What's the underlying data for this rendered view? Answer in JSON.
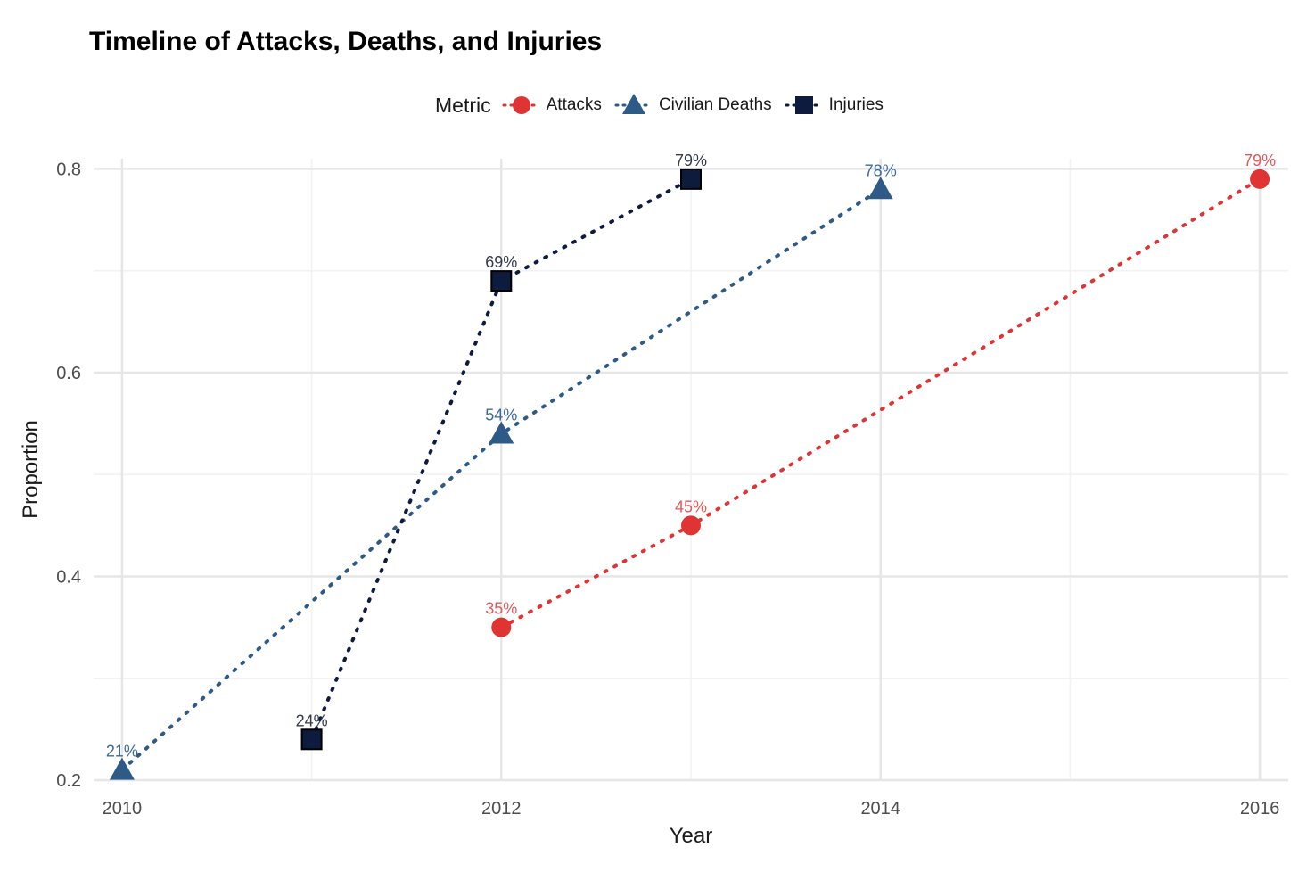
{
  "title": "Timeline of Attacks, Deaths, and Injuries",
  "legend": {
    "title": "Metric",
    "items": [
      {
        "label": "Attacks",
        "color": "#e03333",
        "shape": "circle"
      },
      {
        "label": "Civilian Deaths",
        "color": "#2e5a87",
        "shape": "triangle"
      },
      {
        "label": "Injuries",
        "color": "#0d1b3e",
        "shape": "square"
      }
    ]
  },
  "chart_data": {
    "type": "line",
    "title": "Timeline of Attacks, Deaths, and Injuries",
    "xlabel": "Year",
    "ylabel": "Proportion",
    "xlim": [
      2009.85,
      2016.15
    ],
    "ylim": [
      0.2,
      0.81
    ],
    "x_ticks": [
      2010,
      2012,
      2014,
      2016
    ],
    "y_ticks": [
      0.2,
      0.4,
      0.6,
      0.8
    ],
    "x_tick_labels": [
      "2010",
      "2012",
      "2014",
      "2016"
    ],
    "y_tick_labels": [
      "0.2",
      "0.4",
      "0.6",
      "0.8"
    ],
    "grid": true,
    "legend_position": "top",
    "line_style": "dotted",
    "series": [
      {
        "name": "Attacks",
        "color": "#e03333",
        "label_color": "#e05a5a",
        "shape": "circle",
        "points": [
          {
            "x": 2012,
            "y": 0.35,
            "label": "35%"
          },
          {
            "x": 2013,
            "y": 0.45,
            "label": "45%"
          },
          {
            "x": 2016,
            "y": 0.79,
            "label": "79%"
          }
        ]
      },
      {
        "name": "Civilian Deaths",
        "color": "#2e5a87",
        "label_color": "#3d6a98",
        "shape": "triangle",
        "points": [
          {
            "x": 2010,
            "y": 0.21,
            "label": "21%"
          },
          {
            "x": 2012,
            "y": 0.54,
            "label": "54%"
          },
          {
            "x": 2014,
            "y": 0.78,
            "label": "78%"
          }
        ]
      },
      {
        "name": "Injuries",
        "color": "#0d1b3e",
        "label_color": "#333a4d",
        "shape": "square",
        "points": [
          {
            "x": 2011,
            "y": 0.24,
            "label": "24%"
          },
          {
            "x": 2012,
            "y": 0.69,
            "label": "69%"
          },
          {
            "x": 2013,
            "y": 0.79,
            "label": "79%"
          }
        ]
      }
    ]
  }
}
